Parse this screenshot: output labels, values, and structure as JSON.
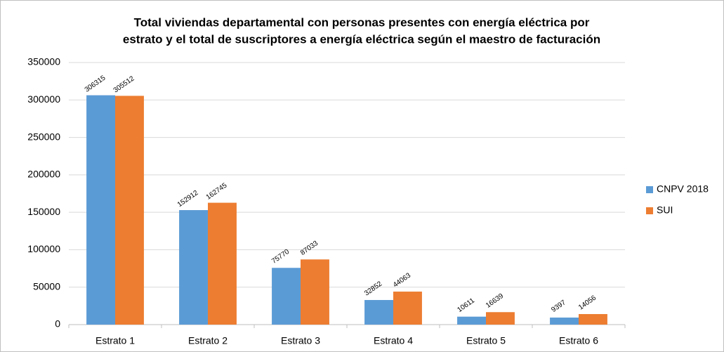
{
  "chart_data": {
    "type": "bar",
    "title": [
      "Total viviendas departamental con personas presentes con energía eléctrica por",
      "estrato y el total de suscriptores a energía eléctrica según el maestro de facturación"
    ],
    "categories": [
      "Estrato 1",
      "Estrato 2",
      "Estrato 3",
      "Estrato 4",
      "Estrato 5",
      "Estrato 6"
    ],
    "series": [
      {
        "name": "CNPV 2018",
        "color": "#5b9bd5",
        "values": [
          306315,
          152912,
          75770,
          32852,
          10611,
          9397
        ]
      },
      {
        "name": "SUI",
        "color": "#ed7d31",
        "values": [
          305512,
          162745,
          87033,
          44063,
          16639,
          14056
        ]
      }
    ],
    "ylim": [
      0,
      350000
    ],
    "yticks": [
      0,
      50000,
      100000,
      150000,
      200000,
      250000,
      300000,
      350000
    ],
    "grid": true,
    "legend": "right"
  }
}
